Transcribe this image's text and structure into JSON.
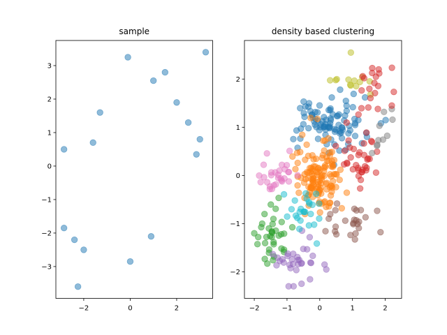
{
  "chart_data": [
    {
      "type": "scatter",
      "title": "sample",
      "xlabel": "",
      "ylabel": "",
      "xlim": [
        -3.2,
        3.55
      ],
      "ylim": [
        -3.95,
        3.75
      ],
      "xticks": [
        -2,
        0,
        2
      ],
      "yticks": [
        -3,
        -2,
        -1,
        0,
        1,
        2,
        3
      ],
      "xtick_labels": [
        "−2",
        "0",
        "2"
      ],
      "ytick_labels": [
        "−3",
        "−2",
        "−1",
        "0",
        "1",
        "2",
        "3"
      ],
      "grid": false,
      "legend": "none",
      "marker_color": "#1f77b4",
      "alpha": 0.5,
      "n_points_estimate": 500,
      "distribution": {
        "mean": [
          0.0,
          0.0
        ],
        "std": [
          0.95,
          0.95
        ],
        "correlation": 0.5,
        "seed": 42
      },
      "points": [
        [
          3.25,
          3.4
        ],
        [
          -0.1,
          3.25
        ],
        [
          -2.25,
          -3.6
        ],
        [
          0.0,
          -2.85
        ],
        [
          -2.85,
          0.5
        ],
        [
          -2.85,
          -1.85
        ],
        [
          2.85,
          0.35
        ],
        [
          3.0,
          0.8
        ],
        [
          1.5,
          2.8
        ],
        [
          1.0,
          2.55
        ],
        [
          -1.3,
          1.6
        ],
        [
          -2.4,
          -2.2
        ],
        [
          -2.0,
          -2.5
        ],
        [
          0.9,
          -2.1
        ],
        [
          -1.6,
          0.7
        ],
        [
          2.0,
          1.9
        ],
        [
          2.5,
          1.3
        ]
      ]
    },
    {
      "type": "scatter",
      "title": "density based clustering",
      "xlabel": "",
      "ylabel": "",
      "xlim": [
        -2.3,
        2.5
      ],
      "ylim": [
        -2.55,
        2.8
      ],
      "xticks": [
        -2,
        -1,
        0,
        1,
        2
      ],
      "yticks": [
        -2,
        -1,
        0,
        1,
        2
      ],
      "xtick_labels": [
        "−2",
        "−1",
        "0",
        "1",
        "2"
      ],
      "ytick_labels": [
        "−2",
        "−1",
        "0",
        "1",
        "2"
      ],
      "grid": false,
      "legend": "none",
      "alpha": 0.5,
      "clusters": [
        {
          "color": "#1f77b4",
          "center": [
            0.35,
            1.1
          ],
          "spread": [
            0.55,
            0.28
          ],
          "count": 95
        },
        {
          "color": "#ff7f0e",
          "center": [
            0.0,
            -0.05
          ],
          "spread": [
            0.32,
            0.38
          ],
          "count": 130
        },
        {
          "color": "#2ca02c",
          "center": [
            -1.4,
            -1.2
          ],
          "spread": [
            0.25,
            0.3
          ],
          "count": 35
        },
        {
          "color": "#d62728",
          "center": [
            1.15,
            0.35
          ],
          "spread": [
            0.3,
            0.3
          ],
          "count": 35
        },
        {
          "color": "#9467bd",
          "center": [
            -0.7,
            -1.75
          ],
          "spread": [
            0.35,
            0.22
          ],
          "count": 30
        },
        {
          "color": "#8c564b",
          "center": [
            0.85,
            -1.0
          ],
          "spread": [
            0.35,
            0.25
          ],
          "count": 25
        },
        {
          "color": "#e377c2",
          "center": [
            -1.25,
            0.05
          ],
          "spread": [
            0.3,
            0.2
          ],
          "count": 30
        },
        {
          "color": "#7f7f7f",
          "center": [
            1.9,
            0.85
          ],
          "spread": [
            0.2,
            0.4
          ],
          "count": 10
        },
        {
          "color": "#bcbd22",
          "center": [
            0.9,
            2.05
          ],
          "spread": [
            0.3,
            0.22
          ],
          "count": 12
        },
        {
          "color": "#17becf",
          "center": [
            -0.45,
            -0.85
          ],
          "spread": [
            0.25,
            0.25
          ],
          "count": 25
        },
        {
          "color": "#d62728",
          "center": [
            1.6,
            1.75
          ],
          "spread": [
            0.25,
            0.3
          ],
          "count": 18
        }
      ],
      "points": [
        {
          "x": 0.95,
          "y": 2.55,
          "color": "#bcbd22"
        },
        {
          "x": 1.8,
          "y": 2.2,
          "color": "#d62728"
        },
        {
          "x": -0.95,
          "y": -2.3,
          "color": "#9467bd"
        },
        {
          "x": -0.8,
          "y": -2.3,
          "color": "#9467bd"
        },
        {
          "x": 2.2,
          "y": 1.45,
          "color": "#d62728"
        },
        {
          "x": -2.0,
          "y": -1.2,
          "color": "#2ca02c"
        },
        {
          "x": 0.2,
          "y": -1.95,
          "color": "#9467bd"
        }
      ]
    }
  ]
}
